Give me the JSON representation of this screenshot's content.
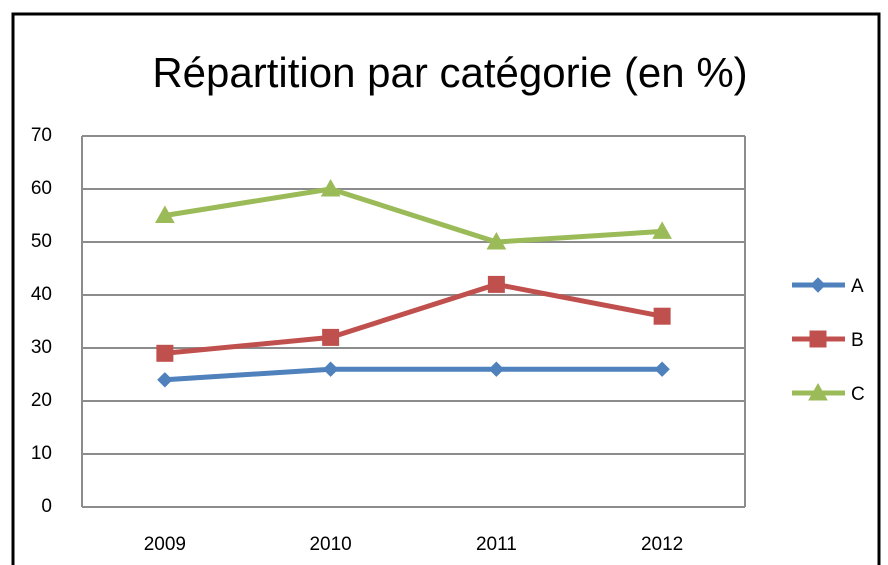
{
  "chart_data": {
    "type": "line",
    "title": "Répartition par catégorie (en %)",
    "categories": [
      "2009",
      "2010",
      "2011",
      "2012"
    ],
    "series": [
      {
        "name": "A",
        "color": "#4f81bd",
        "marker": "diamond",
        "values": [
          24,
          26,
          26,
          26
        ]
      },
      {
        "name": "B",
        "color": "#c0504d",
        "marker": "square",
        "values": [
          29,
          32,
          42,
          36
        ]
      },
      {
        "name": "C",
        "color": "#9bbb59",
        "marker": "triangle",
        "values": [
          55,
          60,
          50,
          52
        ]
      }
    ],
    "ylim": [
      0,
      70
    ],
    "yticks": [
      0,
      10,
      20,
      30,
      40,
      50,
      60,
      70
    ],
    "grid": true,
    "legend": "right"
  }
}
